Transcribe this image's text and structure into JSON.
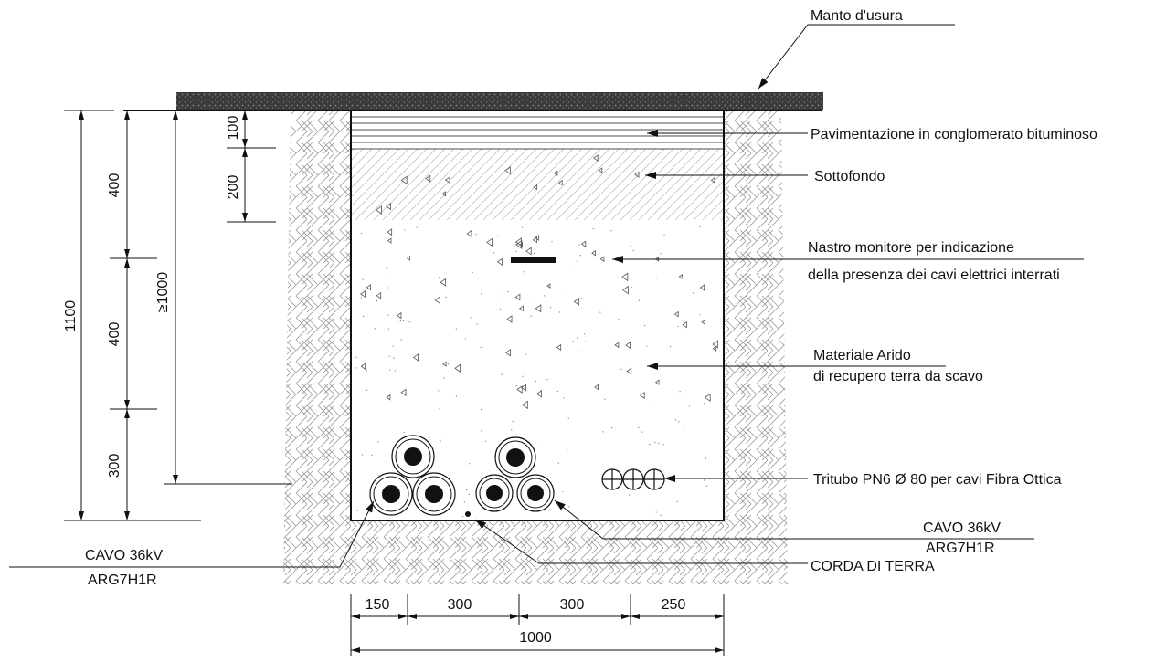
{
  "labels": {
    "manto": "Manto d'usura",
    "pavimentazione": "Pavimentazione in conglomerato bituminoso",
    "sottofondo": "Sottofondo",
    "nastro1": "Nastro monitore per indicazione",
    "nastro2": "della presenza dei cavi elettrici interrati",
    "materiale1": "Materiale Arido",
    "materiale2": "di recupero terra da scavo",
    "tritubo": "Tritubo PN6 Ø 80 per cavi Fibra Ottica",
    "cavo_right_1": "CAVO  36kV",
    "cavo_right_2": "ARG7H1R",
    "corda": "CORDA DI TERRA",
    "cavo_left_1": "CAVO  36kV",
    "cavo_left_2": "ARG7H1R"
  },
  "dimensions": {
    "d1100": "1100",
    "d400a": "400",
    "d400b": "400",
    "d300v": "300",
    "d1000v": "≥1000",
    "d100": "100",
    "d200": "200",
    "d150": "150",
    "d300a": "300",
    "d300b": "300",
    "d250": "250",
    "d1000h": "1000"
  }
}
